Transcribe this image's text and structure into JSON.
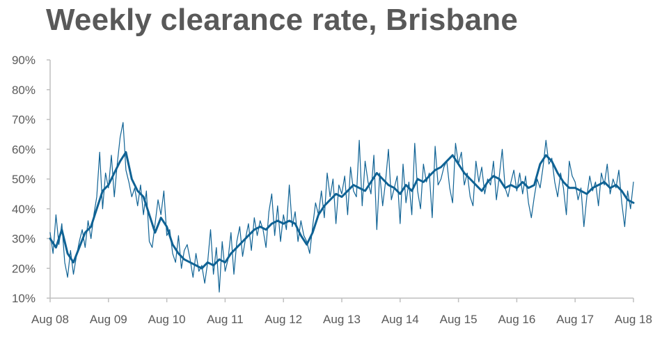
{
  "chart_data": {
    "type": "line",
    "title": "Weekly clearance rate, Brisbane",
    "xlabel": "",
    "ylabel": "",
    "x_ticks": [
      "Aug 08",
      "Aug 09",
      "Aug 10",
      "Aug 11",
      "Aug 12",
      "Aug 13",
      "Aug 14",
      "Aug 15",
      "Aug 16",
      "Aug 17",
      "Aug 18"
    ],
    "y_ticks": [
      "10%",
      "20%",
      "30%",
      "40%",
      "50%",
      "60%",
      "70%",
      "80%",
      "90%"
    ],
    "ylim": [
      10,
      90
    ],
    "xlim": [
      2008.0,
      2018.0
    ],
    "grid": false,
    "legend": "none",
    "colors": {
      "line": "#0f6294",
      "axis": "#bfbfbf",
      "text": "#595959"
    },
    "series": [
      {
        "style": "thin",
        "x": [
          2008.0,
          2008.05,
          2008.1,
          2008.15,
          2008.2,
          2008.25,
          2008.3,
          2008.35,
          2008.4,
          2008.45,
          2008.5,
          2008.55,
          2008.6,
          2008.65,
          2008.7,
          2008.75,
          2008.8,
          2008.85,
          2008.9,
          2008.95,
          2009.0,
          2009.05,
          2009.1,
          2009.15,
          2009.2,
          2009.25,
          2009.3,
          2009.35,
          2009.4,
          2009.45,
          2009.5,
          2009.55,
          2009.6,
          2009.65,
          2009.7,
          2009.75,
          2009.8,
          2009.85,
          2009.9,
          2009.95,
          2010.0,
          2010.05,
          2010.1,
          2010.15,
          2010.2,
          2010.25,
          2010.3,
          2010.35,
          2010.4,
          2010.45,
          2010.5,
          2010.55,
          2010.6,
          2010.65,
          2010.7,
          2010.75,
          2010.8,
          2010.85,
          2010.9,
          2010.95,
          2011.0,
          2011.05,
          2011.1,
          2011.15,
          2011.2,
          2011.25,
          2011.3,
          2011.35,
          2011.4,
          2011.45,
          2011.5,
          2011.55,
          2011.6,
          2011.65,
          2011.7,
          2011.75,
          2011.8,
          2011.85,
          2011.9,
          2011.95,
          2012.0,
          2012.05,
          2012.1,
          2012.15,
          2012.2,
          2012.25,
          2012.3,
          2012.35,
          2012.4,
          2012.45,
          2012.5,
          2012.55,
          2012.6,
          2012.65,
          2012.7,
          2012.75,
          2012.8,
          2012.85,
          2012.9,
          2012.95,
          2013.0,
          2013.05,
          2013.1,
          2013.15,
          2013.2,
          2013.25,
          2013.3,
          2013.35,
          2013.4,
          2013.45,
          2013.5,
          2013.55,
          2013.6,
          2013.65,
          2013.7,
          2013.75,
          2013.8,
          2013.85,
          2013.9,
          2013.95,
          2014.0,
          2014.05,
          2014.1,
          2014.15,
          2014.2,
          2014.25,
          2014.3,
          2014.35,
          2014.4,
          2014.45,
          2014.5,
          2014.55,
          2014.6,
          2014.65,
          2014.7,
          2014.75,
          2014.8,
          2014.85,
          2014.9,
          2014.95,
          2015.0,
          2015.05,
          2015.1,
          2015.15,
          2015.2,
          2015.25,
          2015.3,
          2015.35,
          2015.4,
          2015.45,
          2015.5,
          2015.55,
          2015.6,
          2015.65,
          2015.7,
          2015.75,
          2015.8,
          2015.85,
          2015.9,
          2015.95,
          2016.0,
          2016.05,
          2016.1,
          2016.15,
          2016.2,
          2016.25,
          2016.3,
          2016.35,
          2016.4,
          2016.45,
          2016.5,
          2016.55,
          2016.6,
          2016.65,
          2016.7,
          2016.75,
          2016.8,
          2016.85,
          2016.9,
          2016.95,
          2017.0,
          2017.05,
          2017.1,
          2017.15,
          2017.2,
          2017.25,
          2017.3,
          2017.35,
          2017.4,
          2017.45,
          2017.5,
          2017.55,
          2017.6,
          2017.65,
          2017.7,
          2017.75,
          2017.8,
          2017.85,
          2017.9,
          2017.95,
          2018.0
        ],
        "values": [
          32,
          25,
          38,
          28,
          35,
          22,
          17,
          26,
          18,
          24,
          29,
          33,
          27,
          36,
          30,
          38,
          44,
          59,
          40,
          52,
          47,
          58,
          44,
          55,
          64,
          69,
          53,
          49,
          44,
          47,
          41,
          48,
          38,
          46,
          29,
          27,
          35,
          43,
          38,
          46,
          31,
          33,
          25,
          22,
          31,
          20,
          26,
          28,
          23,
          17,
          25,
          19,
          21,
          15,
          22,
          33,
          18,
          27,
          12,
          29,
          19,
          23,
          32,
          18,
          29,
          34,
          24,
          30,
          35,
          26,
          37,
          31,
          36,
          33,
          27,
          39,
          45,
          31,
          41,
          29,
          38,
          33,
          48,
          34,
          39,
          29,
          36,
          31,
          29,
          25,
          34,
          42,
          38,
          46,
          37,
          52,
          44,
          50,
          35,
          48,
          45,
          51,
          38,
          54,
          46,
          44,
          63,
          41,
          56,
          49,
          45,
          58,
          33,
          52,
          41,
          49,
          60,
          43,
          47,
          51,
          35,
          55,
          42,
          49,
          38,
          62,
          46,
          40,
          55,
          49,
          52,
          37,
          61,
          48,
          50,
          54,
          56,
          47,
          42,
          62,
          55,
          59,
          48,
          52,
          44,
          41,
          56,
          49,
          54,
          45,
          50,
          48,
          56,
          43,
          51,
          60,
          47,
          44,
          49,
          53,
          46,
          52,
          45,
          51,
          42,
          37,
          44,
          50,
          47,
          54,
          63,
          55,
          57,
          49,
          44,
          52,
          47,
          38,
          56,
          51,
          49,
          43,
          47,
          34,
          44,
          51,
          46,
          49,
          41,
          52,
          48,
          55,
          45,
          50,
          47,
          53,
          42,
          34,
          46,
          40,
          49
        ]
      },
      {
        "style": "thick",
        "x": [
          2008.0,
          2008.1,
          2008.2,
          2008.3,
          2008.4,
          2008.5,
          2008.6,
          2008.7,
          2008.8,
          2008.9,
          2009.0,
          2009.1,
          2009.2,
          2009.3,
          2009.4,
          2009.5,
          2009.6,
          2009.7,
          2009.8,
          2009.9,
          2010.0,
          2010.1,
          2010.2,
          2010.3,
          2010.4,
          2010.5,
          2010.6,
          2010.7,
          2010.8,
          2010.9,
          2011.0,
          2011.1,
          2011.2,
          2011.3,
          2011.4,
          2011.5,
          2011.6,
          2011.7,
          2011.8,
          2011.9,
          2012.0,
          2012.1,
          2012.2,
          2012.3,
          2012.4,
          2012.5,
          2012.6,
          2012.7,
          2012.8,
          2012.9,
          2013.0,
          2013.1,
          2013.2,
          2013.3,
          2013.4,
          2013.5,
          2013.6,
          2013.7,
          2013.8,
          2013.9,
          2014.0,
          2014.1,
          2014.2,
          2014.3,
          2014.4,
          2014.5,
          2014.6,
          2014.7,
          2014.8,
          2014.9,
          2015.0,
          2015.1,
          2015.2,
          2015.3,
          2015.4,
          2015.5,
          2015.6,
          2015.7,
          2015.8,
          2015.9,
          2016.0,
          2016.1,
          2016.2,
          2016.3,
          2016.4,
          2016.5,
          2016.6,
          2016.7,
          2016.8,
          2016.9,
          2017.0,
          2017.1,
          2017.2,
          2017.3,
          2017.4,
          2017.5,
          2017.6,
          2017.7,
          2017.8,
          2017.9,
          2018.0
        ],
        "values": [
          30,
          27,
          33,
          25,
          22,
          27,
          32,
          34,
          40,
          46,
          48,
          52,
          56,
          59,
          50,
          46,
          44,
          38,
          32,
          37,
          34,
          28,
          25,
          23,
          22,
          21,
          20,
          22,
          21,
          23,
          22,
          25,
          27,
          29,
          31,
          33,
          34,
          33,
          35,
          36,
          35,
          36,
          35,
          31,
          28,
          32,
          38,
          41,
          43,
          45,
          44,
          46,
          48,
          47,
          46,
          49,
          52,
          50,
          48,
          47,
          45,
          48,
          46,
          50,
          49,
          51,
          53,
          54,
          56,
          58,
          55,
          52,
          50,
          48,
          46,
          49,
          51,
          50,
          47,
          48,
          47,
          49,
          47,
          48,
          55,
          58,
          56,
          52,
          49,
          47,
          47,
          46,
          45,
          47,
          48,
          49,
          47,
          48,
          46,
          43,
          42
        ]
      }
    ]
  }
}
